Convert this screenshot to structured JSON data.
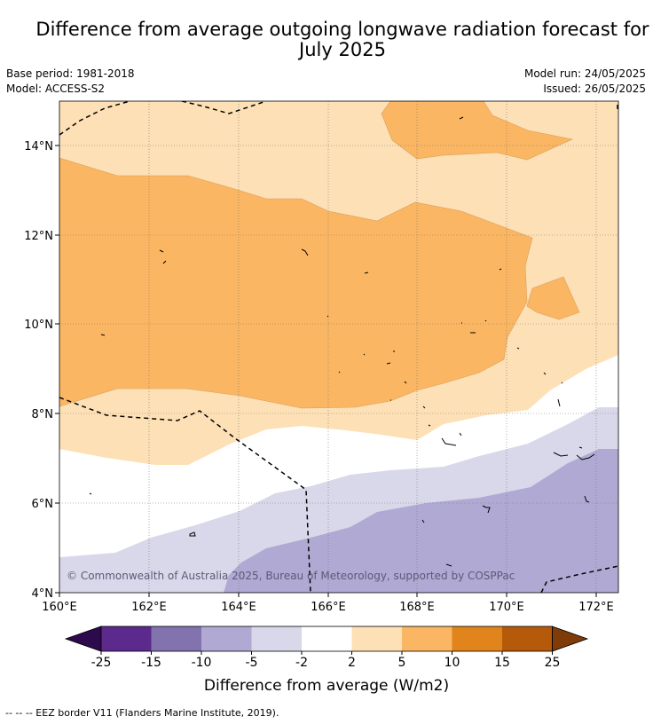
{
  "title_line1": "Difference from average outgoing longwave radiation forecast for",
  "title_line2": "July 2025",
  "base_period": "Base period: 1981-2018",
  "model": "Model: ACCESS-S2",
  "model_run": "Model run: 24/05/2025",
  "issued": "Issued: 26/05/2025",
  "copyright": "© Commonwealth of Australia 2025, Bureau of Meteorology, supported by COSPPac",
  "footer": "--  --  -- EEZ border V11 (Flanders Marine Institute, 2019).",
  "map": {
    "lon_range": [
      160,
      172.5
    ],
    "lat_range": [
      4,
      15
    ],
    "lon_ticks": [
      {
        "value": 160,
        "label": "160°E"
      },
      {
        "value": 162,
        "label": "162°E"
      },
      {
        "value": 164,
        "label": "164°E"
      },
      {
        "value": 166,
        "label": "166°E"
      },
      {
        "value": 168,
        "label": "168°E"
      },
      {
        "value": 170,
        "label": "170°E"
      },
      {
        "value": 172,
        "label": "172°E"
      }
    ],
    "lat_ticks": [
      {
        "value": 14,
        "label": "14°N"
      },
      {
        "value": 12,
        "label": "12°N"
      },
      {
        "value": 10,
        "label": "10°N"
      },
      {
        "value": 8,
        "label": "8°N"
      },
      {
        "value": 6,
        "label": "6°N"
      },
      {
        "value": 4,
        "label": "4°N"
      }
    ],
    "gridlines": true
  },
  "colorbar": {
    "title": "Difference from average (W/m2)",
    "boundaries": [
      "-25",
      "-15",
      "-10",
      "-5",
      "-2",
      "2",
      "5",
      "10",
      "15",
      "25"
    ],
    "colors": [
      "#5b2a8c",
      "#8273ae",
      "#b0a9d3",
      "#d9d8ea",
      "#ffffff",
      "#fde0b5",
      "#fab662",
      "#e0841b",
      "#b45a0a"
    ],
    "under_color": "#2d0a4e",
    "over_color": "#7f3b08"
  }
}
